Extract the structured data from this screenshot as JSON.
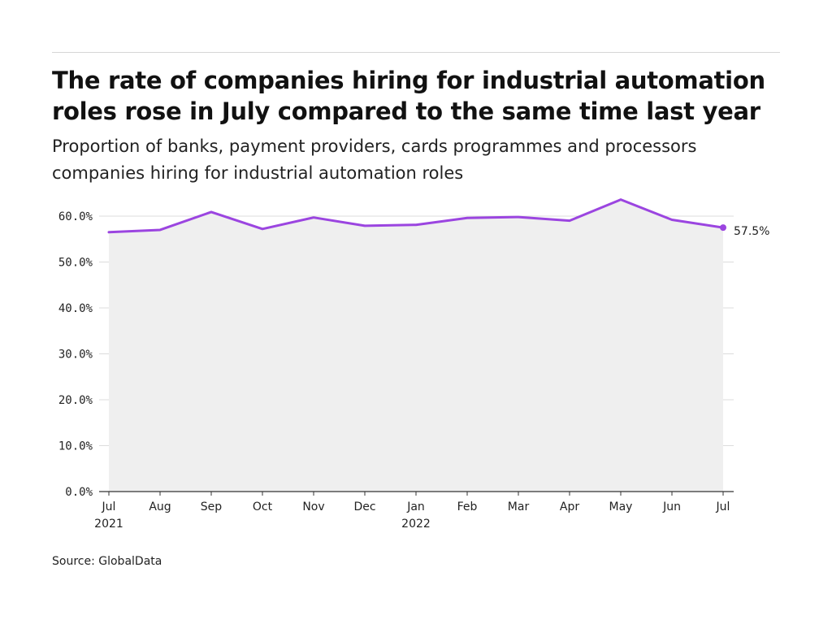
{
  "title": "The rate of companies hiring for industrial automation roles rose in July compared to the same time last year",
  "subtitle": "Proportion of banks, payment providers, cards programmes and processors companies hiring for industrial automation roles",
  "source": "Source: GlobalData",
  "colors": {
    "line": "#9b45e0",
    "area": "#efefef",
    "grid": "#dcdcdc",
    "axis": "#333333"
  },
  "chart_data": {
    "type": "area",
    "title": "The rate of companies hiring for industrial automation roles rose in July compared to the same time last year",
    "subtitle": "Proportion of banks, payment providers, cards programmes and processors companies hiring for industrial automation roles",
    "categories": [
      "Jul 2021",
      "Aug",
      "Sep",
      "Oct",
      "Nov",
      "Dec",
      "Jan 2022",
      "Feb",
      "Mar",
      "Apr",
      "May",
      "Jun",
      "Jul"
    ],
    "x_tick_labels": [
      [
        "Jul",
        "2021"
      ],
      [
        "Aug"
      ],
      [
        "Sep"
      ],
      [
        "Oct"
      ],
      [
        "Nov"
      ],
      [
        "Dec"
      ],
      [
        "Jan",
        "2022"
      ],
      [
        "Feb"
      ],
      [
        "Mar"
      ],
      [
        "Apr"
      ],
      [
        "May"
      ],
      [
        "Jun"
      ],
      [
        "Jul"
      ]
    ],
    "values": [
      56.5,
      57.0,
      60.9,
      57.2,
      59.7,
      57.9,
      58.1,
      59.6,
      59.8,
      59.0,
      63.6,
      59.2,
      57.5
    ],
    "end_label": "57.5%",
    "y_ticks": [
      0,
      10,
      20,
      30,
      40,
      50,
      60
    ],
    "y_tick_labels": [
      "0.0%",
      "10.0%",
      "20.0%",
      "30.0%",
      "40.0%",
      "50.0%",
      "60.0%"
    ],
    "ylim": [
      0,
      60
    ],
    "grid": true,
    "legend": "none",
    "xlabel": "",
    "ylabel": ""
  }
}
